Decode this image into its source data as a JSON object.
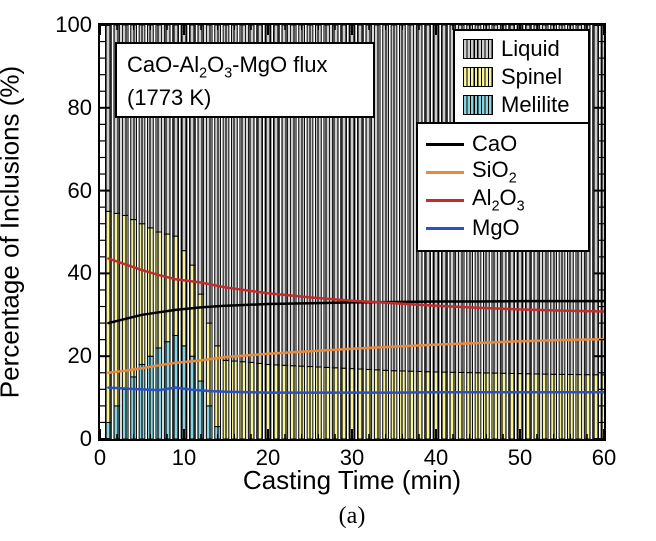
{
  "subfig": "(a)",
  "axes": {
    "x": {
      "label": "Casting Time (min)",
      "lim": [
        0,
        60
      ],
      "ticks": [
        0,
        10,
        20,
        30,
        40,
        50,
        60
      ],
      "minor_step": 2,
      "label_fontsize": 26,
      "tick_fontsize": 22
    },
    "y": {
      "label": "Percentage of Inclusions (%)",
      "lim": [
        0,
        100
      ],
      "ticks": [
        0,
        20,
        40,
        60,
        80,
        100
      ],
      "minor_step": 4,
      "label_fontsize": 26,
      "tick_fontsize": 22
    }
  },
  "annotation": {
    "line1_html": "CaO-Al<span class=\"sub\">2</span>O<span class=\"sub\">3</span>-MgO flux",
    "line2": "(1773 K)"
  },
  "phase_legend": {
    "items": [
      {
        "label": "Liquid",
        "fill": "#cccccc"
      },
      {
        "label": "Spinel",
        "fill": "#f7f39a"
      },
      {
        "label": "Melilite",
        "fill": "#87d6df"
      }
    ],
    "hatch_color": "#000000"
  },
  "line_legend": {
    "items": [
      {
        "label_html": "CaO",
        "color": "#000000"
      },
      {
        "label_html": "SiO<span class=\"sub\">2</span>",
        "color": "#e78a3f"
      },
      {
        "label_html": "Al<span class=\"sub\">2</span>O<span class=\"sub\">3</span>",
        "color": "#c22c2c"
      },
      {
        "label_html": "MgO",
        "color": "#2c4fc2"
      }
    ],
    "line_width": 3
  },
  "bars": {
    "x_start": 1,
    "x_end": 60,
    "bar_width": 0.68,
    "hatch": "vertical",
    "stroke": "#000000",
    "stroke_width": 1,
    "stacks": [
      {
        "key": "melilite",
        "fill": "#87d6df"
      },
      {
        "key": "spinel",
        "fill": "#f7f39a"
      },
      {
        "key": "liquid",
        "fill": "#cccccc"
      }
    ],
    "profiles": {
      "melilite": {
        "pts": [
          [
            1,
            4
          ],
          [
            3,
            12
          ],
          [
            5,
            18
          ],
          [
            7,
            22
          ],
          [
            9,
            25
          ],
          [
            11,
            20
          ],
          [
            12,
            14
          ],
          [
            13,
            8
          ],
          [
            14,
            3
          ],
          [
            15,
            0
          ],
          [
            60,
            0
          ]
        ]
      },
      "spinel": {
        "pts": [
          [
            1,
            51
          ],
          [
            3,
            42
          ],
          [
            5,
            34
          ],
          [
            7,
            28
          ],
          [
            9,
            24
          ],
          [
            11,
            22
          ],
          [
            13,
            20
          ],
          [
            15,
            19
          ],
          [
            18,
            18.5
          ],
          [
            20,
            18
          ],
          [
            25,
            17.5
          ],
          [
            30,
            17
          ],
          [
            35,
            16.5
          ],
          [
            40,
            16.2
          ],
          [
            45,
            16
          ],
          [
            50,
            15.8
          ],
          [
            55,
            15.6
          ],
          [
            60,
            15.5
          ]
        ]
      }
    }
  },
  "lines": {
    "series": [
      {
        "key": "CaO",
        "color": "#000000",
        "width": 2.5,
        "pts": [
          [
            1,
            28
          ],
          [
            3,
            29
          ],
          [
            5,
            30
          ],
          [
            7,
            30.6
          ],
          [
            9,
            31.2
          ],
          [
            12,
            31.8
          ],
          [
            15,
            32.2
          ],
          [
            20,
            32.6
          ],
          [
            25,
            32.8
          ],
          [
            30,
            33
          ],
          [
            35,
            33.1
          ],
          [
            40,
            33.2
          ],
          [
            45,
            33.2
          ],
          [
            50,
            33.3
          ],
          [
            55,
            33.3
          ],
          [
            60,
            33.3
          ]
        ]
      },
      {
        "key": "SiO2",
        "color": "#e78a3f",
        "width": 2.5,
        "pts": [
          [
            1,
            16
          ],
          [
            3,
            16.5
          ],
          [
            5,
            17.1
          ],
          [
            7,
            17.8
          ],
          [
            9,
            18.4
          ],
          [
            12,
            19
          ],
          [
            15,
            19.8
          ],
          [
            20,
            20.6
          ],
          [
            25,
            21.2
          ],
          [
            30,
            21.8
          ],
          [
            35,
            22.3
          ],
          [
            40,
            22.8
          ],
          [
            45,
            23.2
          ],
          [
            50,
            23.6
          ],
          [
            55,
            23.9
          ],
          [
            60,
            24.1
          ]
        ]
      },
      {
        "key": "Al2O3",
        "color": "#c22c2c",
        "width": 2.5,
        "pts": [
          [
            1,
            43.6
          ],
          [
            3,
            42.2
          ],
          [
            5,
            40.8
          ],
          [
            7,
            39.6
          ],
          [
            9,
            38.6
          ],
          [
            12,
            37.8
          ],
          [
            15,
            36.6
          ],
          [
            20,
            35.2
          ],
          [
            25,
            34.2
          ],
          [
            30,
            33.4
          ],
          [
            35,
            32.8
          ],
          [
            40,
            32.2
          ],
          [
            45,
            31.7
          ],
          [
            50,
            31.3
          ],
          [
            55,
            31
          ],
          [
            60,
            30.8
          ]
        ]
      },
      {
        "key": "MgO",
        "color": "#2c4fc2",
        "width": 2.5,
        "pts": [
          [
            1,
            12.4
          ],
          [
            3,
            12.2
          ],
          [
            5,
            12
          ],
          [
            7,
            11.8
          ],
          [
            9,
            12.4
          ],
          [
            11,
            11.9
          ],
          [
            13,
            11.6
          ],
          [
            15,
            11.4
          ],
          [
            20,
            11.2
          ],
          [
            25,
            11.2
          ],
          [
            30,
            11.2
          ],
          [
            35,
            11.2
          ],
          [
            40,
            11.3
          ],
          [
            45,
            11.3
          ],
          [
            50,
            11.3
          ],
          [
            55,
            11.3
          ],
          [
            60,
            11.3
          ]
        ]
      }
    ]
  },
  "colors": {
    "background": "#ffffff",
    "axis": "#000000"
  }
}
